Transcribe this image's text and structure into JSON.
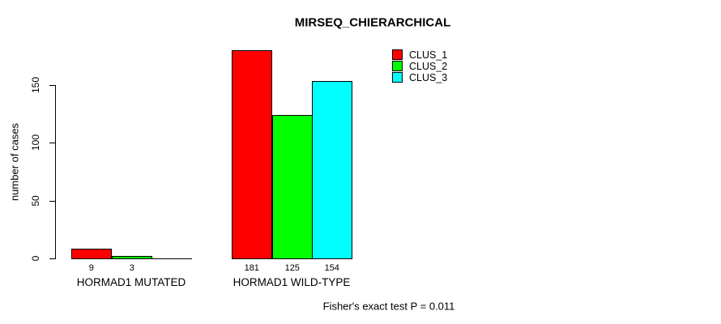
{
  "chart_data": {
    "type": "bar",
    "title": "MIRSEQ_CHIERARCHICAL",
    "ylabel": "number of cases",
    "xlabel": "",
    "categories": [
      "HORMAD1 MUTATED",
      "HORMAD1 WILD-TYPE"
    ],
    "series": [
      {
        "name": "CLUS_1",
        "color": "#ff0000",
        "values": [
          9,
          181
        ]
      },
      {
        "name": "CLUS_2",
        "color": "#00ff00",
        "values": [
          3,
          125
        ]
      },
      {
        "name": "CLUS_3",
        "color": "#00ffff",
        "values": [
          0,
          154
        ]
      }
    ],
    "bar_value_labels": {
      "HORMAD1 MUTATED": [
        9,
        3,
        null
      ],
      "HORMAD1 WILD-TYPE": [
        181,
        125,
        154
      ]
    },
    "yticks": [
      "0",
      "50",
      "100",
      "150"
    ],
    "ylim": [
      0,
      150
    ],
    "grid": false,
    "legend_position": "top-right",
    "annotation": "Fisher's exact test P = 0.011"
  },
  "legend": {
    "items": [
      {
        "label": "CLUS_1",
        "color": "#ff0000"
      },
      {
        "label": "CLUS_2",
        "color": "#00ff00"
      },
      {
        "label": "CLUS_3",
        "color": "#00ffff"
      }
    ]
  },
  "footer": {
    "text": "Fisher's exact test P = 0.011"
  }
}
